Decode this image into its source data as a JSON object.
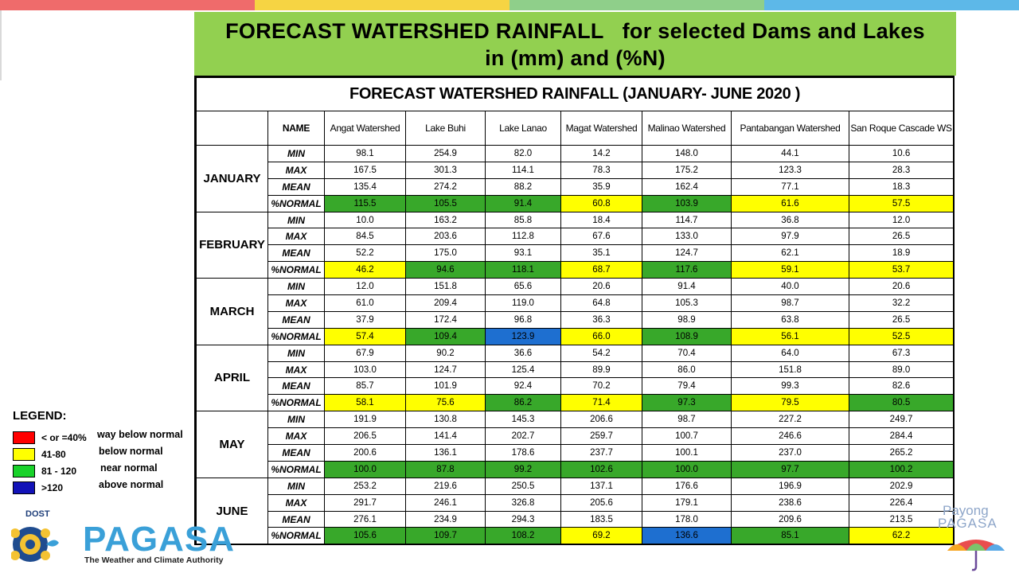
{
  "banner": {
    "line1": "FORECAST WATERSHED RAINFALL   for selected Dams and Lakes",
    "line2": "in (mm) and (%N)"
  },
  "table": {
    "title": "FORECAST WATERSHED RAINFALL (JANUARY- JUNE 2020 )",
    "name_header": "NAME",
    "columns": [
      "Angat Watershed",
      "Lake Buhi",
      "Lake Lanao",
      "Magat Watershed",
      "Malinao Watershed",
      "Pantabangan Watershed",
      "San Roque Cascade WS"
    ],
    "months": [
      {
        "name": "JANUARY",
        "rows": [
          {
            "label": "MIN",
            "values": [
              "98.1",
              "254.9",
              "82.0",
              "14.2",
              "148.0",
              "44.1",
              "10.6"
            ]
          },
          {
            "label": "MAX",
            "values": [
              "167.5",
              "301.3",
              "114.1",
              "78.3",
              "175.2",
              "123.3",
              "28.3"
            ]
          },
          {
            "label": "MEAN",
            "values": [
              "135.4",
              "274.2",
              "88.2",
              "35.9",
              "162.4",
              "77.1",
              "18.3"
            ]
          },
          {
            "label": "%NORMAL",
            "values": [
              "115.5",
              "105.5",
              "91.4",
              "60.8",
              "103.9",
              "61.6",
              "57.5"
            ],
            "colors": [
              "green",
              "green",
              "green",
              "yellow",
              "green",
              "yellow",
              "yellow"
            ]
          }
        ]
      },
      {
        "name": "FEBRUARY",
        "rows": [
          {
            "label": "MIN",
            "values": [
              "10.0",
              "163.2",
              "85.8",
              "18.4",
              "114.7",
              "36.8",
              "12.0"
            ]
          },
          {
            "label": "MAX",
            "values": [
              "84.5",
              "203.6",
              "112.8",
              "67.6",
              "133.0",
              "97.9",
              "26.5"
            ]
          },
          {
            "label": "MEAN",
            "values": [
              "52.2",
              "175.0",
              "93.1",
              "35.1",
              "124.7",
              "62.1",
              "18.9"
            ]
          },
          {
            "label": "%NORMAL",
            "values": [
              "46.2",
              "94.6",
              "118.1",
              "68.7",
              "117.6",
              "59.1",
              "53.7"
            ],
            "colors": [
              "yellow",
              "green",
              "green",
              "yellow",
              "green",
              "yellow",
              "yellow"
            ]
          }
        ]
      },
      {
        "name": "MARCH",
        "rows": [
          {
            "label": "MIN",
            "values": [
              "12.0",
              "151.8",
              "65.6",
              "20.6",
              "91.4",
              "40.0",
              "20.6"
            ]
          },
          {
            "label": "MAX",
            "values": [
              "61.0",
              "209.4",
              "119.0",
              "64.8",
              "105.3",
              "98.7",
              "32.2"
            ]
          },
          {
            "label": "MEAN",
            "values": [
              "37.9",
              "172.4",
              "96.8",
              "36.3",
              "98.9",
              "63.8",
              "26.5"
            ]
          },
          {
            "label": "%NORMAL",
            "values": [
              "57.4",
              "109.4",
              "123.9",
              "66.0",
              "108.9",
              "56.1",
              "52.5"
            ],
            "colors": [
              "yellow",
              "green",
              "blue",
              "yellow",
              "green",
              "yellow",
              "yellow"
            ]
          }
        ]
      },
      {
        "name": "APRIL",
        "rows": [
          {
            "label": "MIN",
            "values": [
              "67.9",
              "90.2",
              "36.6",
              "54.2",
              "70.4",
              "64.0",
              "67.3"
            ]
          },
          {
            "label": "MAX",
            "values": [
              "103.0",
              "124.7",
              "125.4",
              "89.9",
              "86.0",
              "151.8",
              "89.0"
            ]
          },
          {
            "label": "MEAN",
            "values": [
              "85.7",
              "101.9",
              "92.4",
              "70.2",
              "79.4",
              "99.3",
              "82.6"
            ]
          },
          {
            "label": "%NORMAL",
            "values": [
              "58.1",
              "75.6",
              "86.2",
              "71.4",
              "97.3",
              "79.5",
              "80.5"
            ],
            "colors": [
              "yellow",
              "yellow",
              "green",
              "yellow",
              "green",
              "yellow",
              "green"
            ]
          }
        ]
      },
      {
        "name": "MAY",
        "rows": [
          {
            "label": "MIN",
            "values": [
              "191.9",
              "130.8",
              "145.3",
              "206.6",
              "98.7",
              "227.2",
              "249.7"
            ]
          },
          {
            "label": "MAX",
            "values": [
              "206.5",
              "141.4",
              "202.7",
              "259.7",
              "100.7",
              "246.6",
              "284.4"
            ]
          },
          {
            "label": "MEAN",
            "values": [
              "200.6",
              "136.1",
              "178.6",
              "237.7",
              "100.1",
              "237.0",
              "265.2"
            ]
          },
          {
            "label": "%NORMAL",
            "values": [
              "100.0",
              "87.8",
              "99.2",
              "102.6",
              "100.0",
              "97.7",
              "100.2"
            ],
            "colors": [
              "green",
              "green",
              "green",
              "green",
              "green",
              "green",
              "green"
            ]
          }
        ]
      },
      {
        "name": "JUNE",
        "rows": [
          {
            "label": "MIN",
            "values": [
              "253.2",
              "219.6",
              "250.5",
              "137.1",
              "176.6",
              "196.9",
              "202.9"
            ]
          },
          {
            "label": "MAX",
            "values": [
              "291.7",
              "246.1",
              "326.8",
              "205.6",
              "179.1",
              "238.6",
              "226.4"
            ]
          },
          {
            "label": "MEAN",
            "values": [
              "276.1",
              "234.9",
              "294.3",
              "183.5",
              "178.0",
              "209.6",
              "213.5"
            ]
          },
          {
            "label": "%NORMAL",
            "values": [
              "105.6",
              "109.7",
              "108.2",
              "69.2",
              "136.6",
              "85.1",
              "62.2"
            ],
            "colors": [
              "green",
              "green",
              "green",
              "yellow",
              "blue",
              "green",
              "yellow"
            ]
          }
        ]
      }
    ]
  },
  "legend": {
    "title": "LEGEND:",
    "items": [
      {
        "range": "< or =40%",
        "desc": "way below normal",
        "color": "#ff0000"
      },
      {
        "range": "41-80",
        "desc": "below normal",
        "color": "#ffff00"
      },
      {
        "range": "81 - 120",
        "desc": "near normal",
        "color": "#19d22a"
      },
      {
        "range": ">120",
        "desc": "above normal",
        "color": "#1212b8"
      }
    ]
  },
  "logo": {
    "dost": "DOST",
    "name": "PAGASA",
    "tagline": "The Weather and Climate Authority"
  },
  "payong": {
    "line1": "Payong",
    "line2": "PAGASA"
  },
  "colors": {
    "banner": "#92d050",
    "green": "#38a82a",
    "yellow": "#ffff00",
    "blue": "#1e6fd0"
  }
}
